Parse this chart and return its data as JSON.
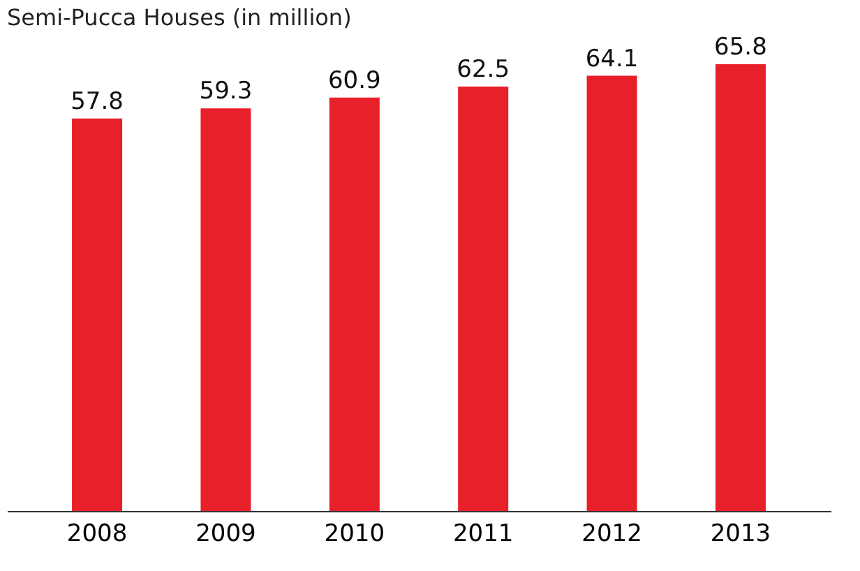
{
  "chart_data": {
    "type": "bar",
    "title": "Semi-Pucca Houses (in million)",
    "categories": [
      "2008",
      "2009",
      "2010",
      "2011",
      "2012",
      "2013"
    ],
    "values": [
      57.8,
      59.3,
      60.9,
      62.5,
      64.1,
      65.8
    ],
    "color": "#e8202a",
    "data_labels": true,
    "tick_labels": "x"
  }
}
